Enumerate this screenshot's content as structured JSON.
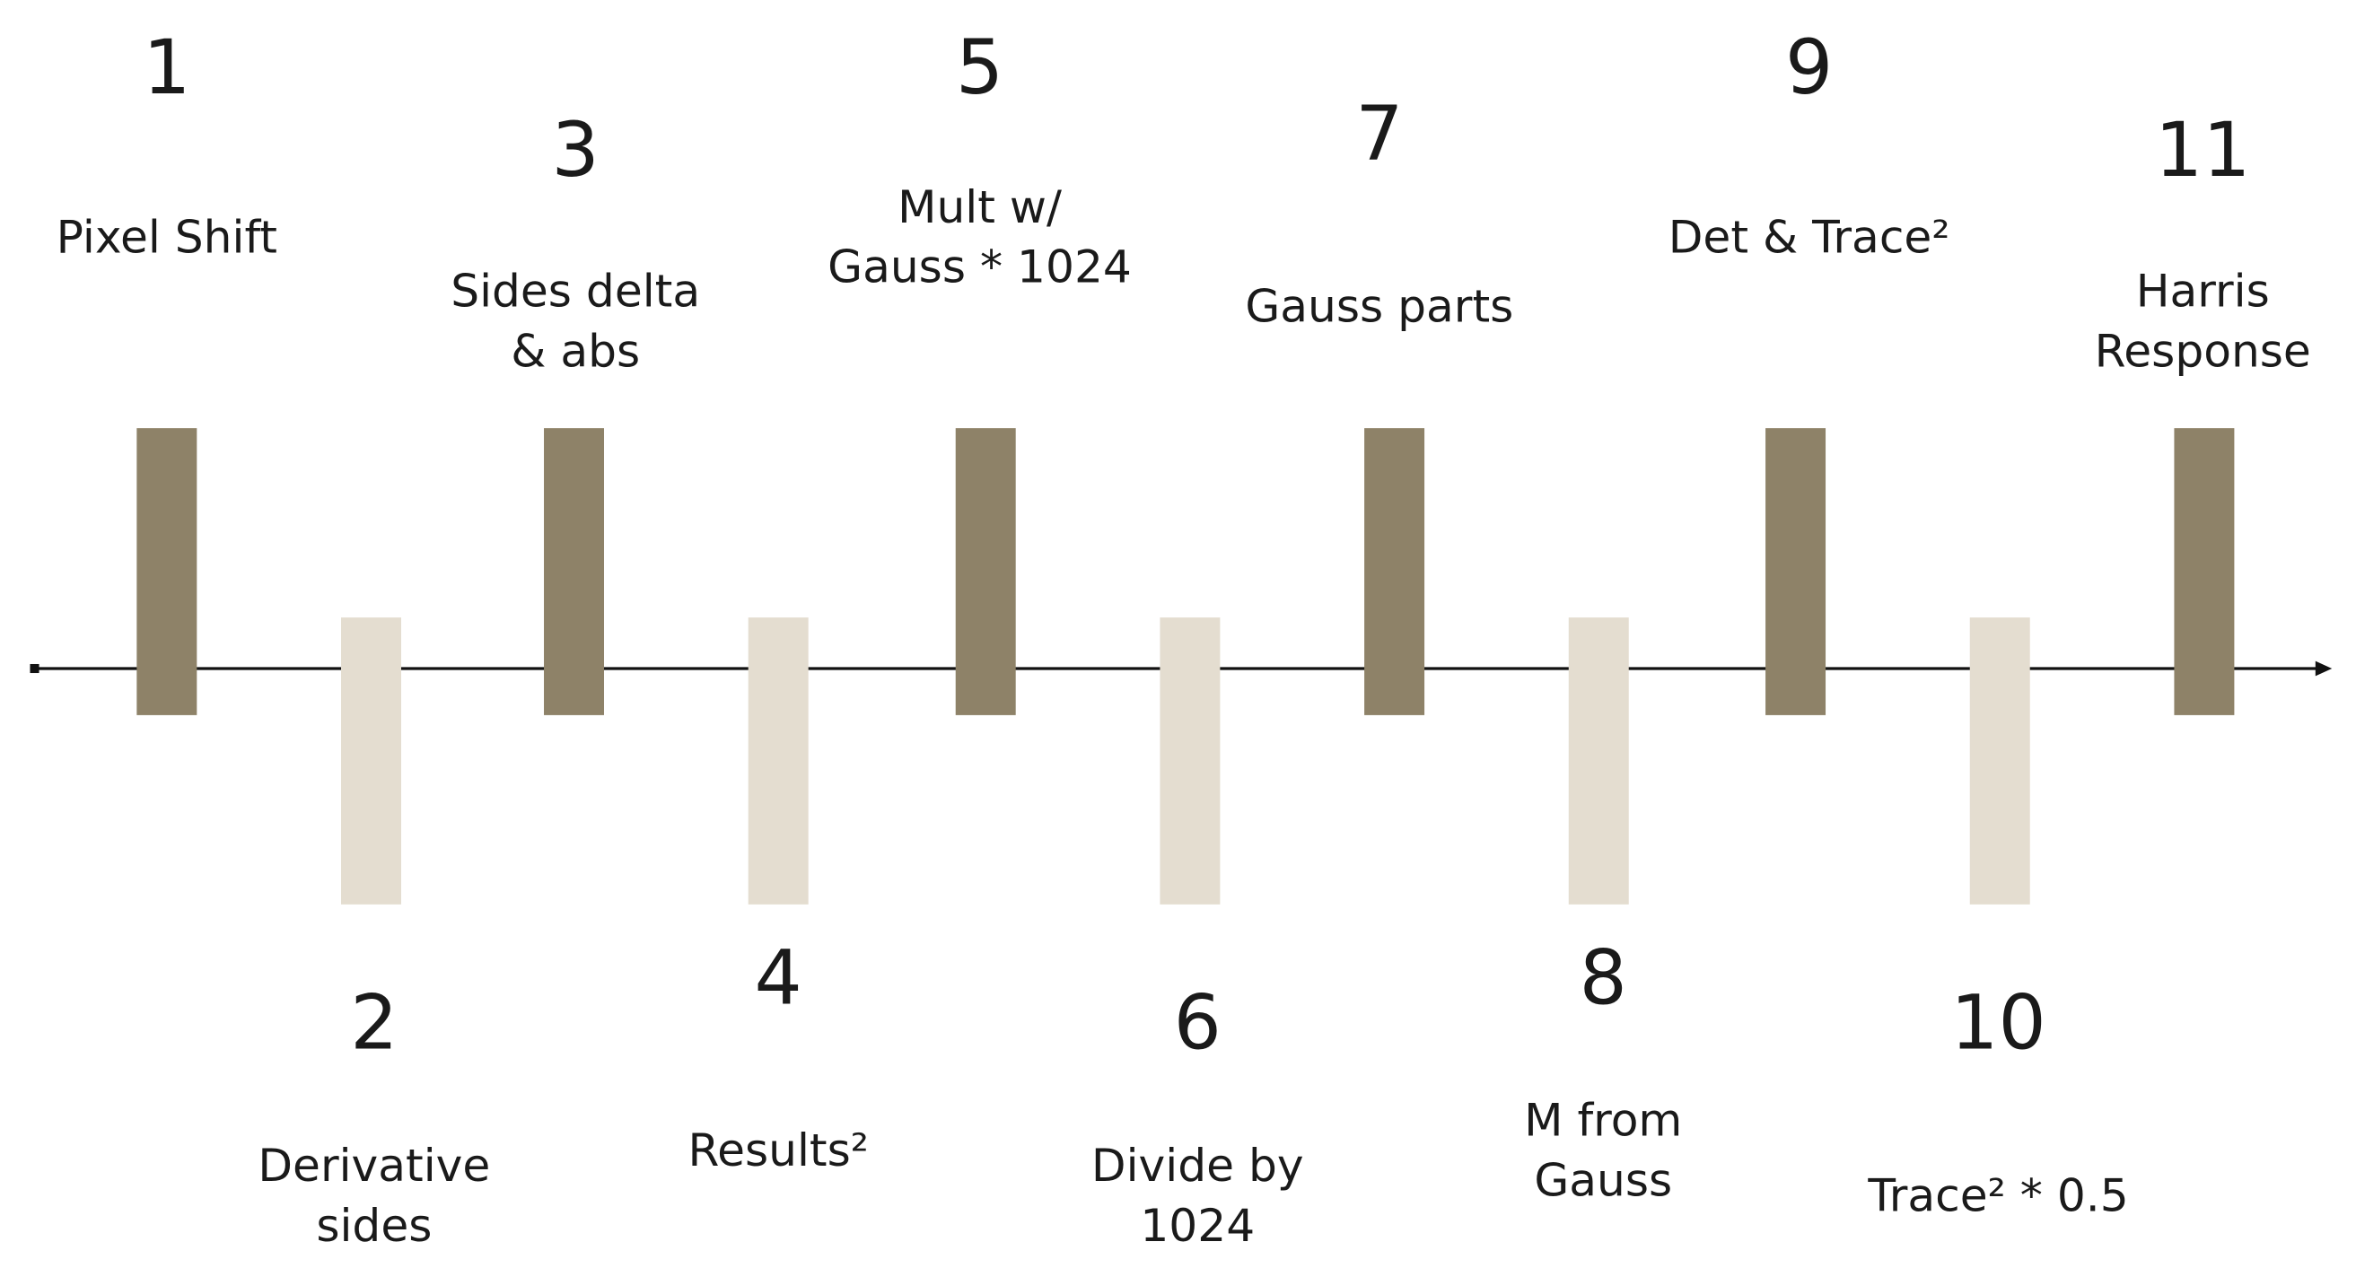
{
  "steps": [
    {
      "number": "1",
      "label": [
        "Pixel Shift"
      ]
    },
    {
      "number": "2",
      "label": [
        "Derivative",
        "sides"
      ]
    },
    {
      "number": "3",
      "label": [
        "Sides delta",
        "& abs"
      ]
    },
    {
      "number": "4",
      "label": [
        "Results²"
      ]
    },
    {
      "number": "5",
      "label": [
        "Mult w/",
        "Gauss * 1024"
      ]
    },
    {
      "number": "6",
      "label": [
        "Divide by",
        "1024"
      ]
    },
    {
      "number": "7",
      "label": [
        "Gauss parts"
      ]
    },
    {
      "number": "8",
      "label": [
        "M from",
        "Gauss"
      ]
    },
    {
      "number": "9",
      "label": [
        "Det & Trace²"
      ]
    },
    {
      "number": "10",
      "label": [
        "Trace² * 0.5"
      ]
    },
    {
      "number": "11",
      "label": [
        "Harris",
        "Response"
      ]
    }
  ]
}
